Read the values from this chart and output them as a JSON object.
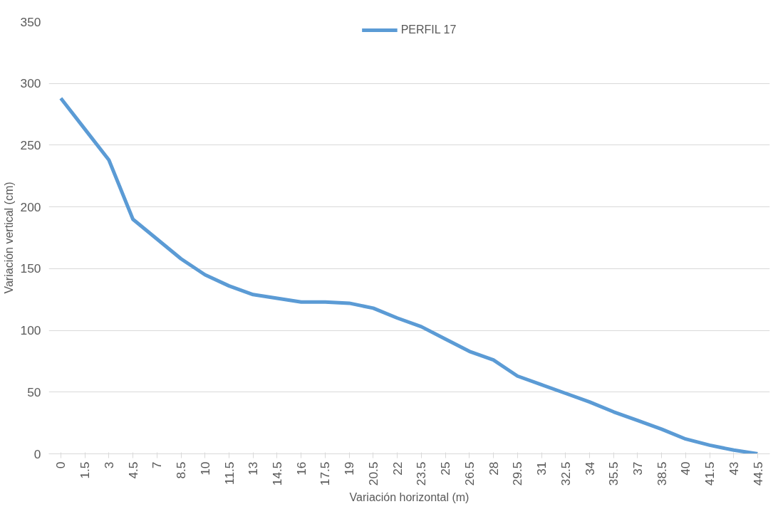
{
  "chart_data": {
    "type": "line",
    "xlabel": "Variación horizontal (m)",
    "ylabel": "Variación vertical (cm)",
    "categories": [
      "0",
      "1.5",
      "3",
      "4.5",
      "7",
      "8.5",
      "10",
      "11.5",
      "13",
      "14.5",
      "16",
      "17.5",
      "19",
      "20.5",
      "22",
      "23.5",
      "25",
      "26.5",
      "28",
      "29.5",
      "31",
      "32.5",
      "34",
      "35.5",
      "37",
      "38.5",
      "40",
      "41.5",
      "43",
      "44.5"
    ],
    "series": [
      {
        "name": "PERFIL 17",
        "color": "#5b9bd5",
        "values": [
          288,
          263,
          238,
          190,
          174,
          158,
          145,
          136,
          129,
          126,
          123,
          123,
          122,
          118,
          110,
          103,
          93,
          83,
          76,
          63,
          56,
          49,
          42,
          34,
          27,
          20,
          12,
          7,
          3,
          0
        ]
      }
    ],
    "ylim": [
      0,
      350
    ],
    "yticks": [
      0,
      50,
      100,
      150,
      200,
      250,
      300,
      350
    ],
    "grid": "y",
    "legend": "top",
    "marker": "none",
    "line_style": "solid"
  }
}
